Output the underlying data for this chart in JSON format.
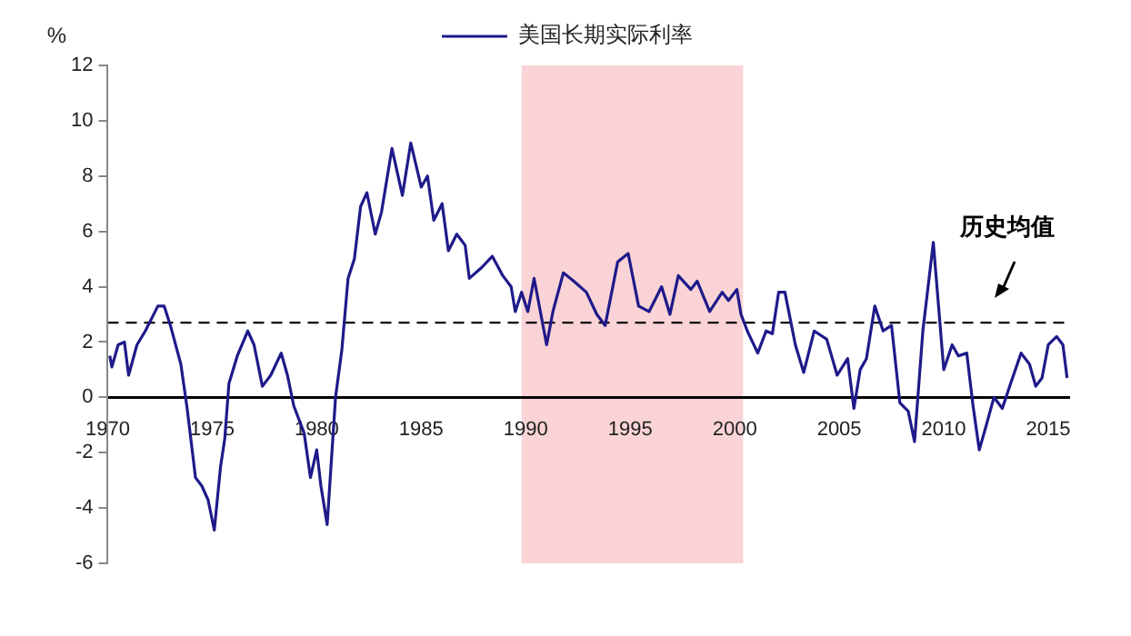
{
  "chart_data": {
    "type": "line",
    "ylabel": "%",
    "legend": "top",
    "series": [
      {
        "name": "美国长期实际利率",
        "color": "#1f1a8a",
        "x": [
          1970.1,
          1970.2,
          1970.5,
          1970.8,
          1971.0,
          1971.4,
          1971.8,
          1972.4,
          1972.7,
          1973.0,
          1973.5,
          1973.8,
          1974.2,
          1974.5,
          1974.8,
          1975.1,
          1975.4,
          1975.6,
          1975.8,
          1976.2,
          1976.7,
          1977.0,
          1977.4,
          1977.8,
          1978.3,
          1978.6,
          1978.9,
          1979.4,
          1979.7,
          1980.0,
          1980.2,
          1980.5,
          1980.9,
          1981.2,
          1981.5,
          1981.8,
          1982.1,
          1982.4,
          1982.8,
          1983.1,
          1983.6,
          1984.1,
          1984.5,
          1985.0,
          1985.3,
          1985.6,
          1986.0,
          1986.3,
          1986.7,
          1987.1,
          1987.3,
          1987.9,
          1988.4,
          1988.9,
          1989.3,
          1989.5,
          1989.8,
          1990.1,
          1990.4,
          1990.7,
          1991.0,
          1991.3,
          1991.8,
          1992.3,
          1992.9,
          1993.4,
          1993.8,
          1994.4,
          1994.9,
          1995.4,
          1995.9,
          1996.5,
          1996.9,
          1997.3,
          1997.9,
          1998.2,
          1998.8,
          1999.4,
          1999.7,
          2000.1,
          2000.3,
          2000.6,
          2001.1,
          2001.5,
          2001.8,
          2002.1,
          2002.4,
          2002.9,
          2003.3,
          2003.8,
          2004.4,
          2004.9,
          2005.4,
          2005.7,
          2006.0,
          2006.3,
          2006.7,
          2007.1,
          2007.5,
          2007.9,
          2008.3,
          2008.6,
          2009.0,
          2009.5,
          2010.0,
          2010.4,
          2010.7,
          2011.1,
          2011.4,
          2011.7,
          2012.0,
          2012.4,
          2012.8,
          2013.2,
          2013.7,
          2014.1,
          2014.4,
          2014.7,
          2015.0,
          2015.4,
          2015.7,
          2015.9
        ],
        "values": [
          1.5,
          1.1,
          1.9,
          2.0,
          0.8,
          1.9,
          2.4,
          3.3,
          3.3,
          2.6,
          1.2,
          -0.4,
          -2.9,
          -3.2,
          -3.7,
          -4.8,
          -2.5,
          -1.5,
          0.5,
          1.5,
          2.4,
          1.9,
          0.4,
          0.8,
          1.6,
          0.8,
          -0.3,
          -1.3,
          -2.9,
          -1.9,
          -3.2,
          -4.6,
          0.0,
          1.7,
          4.3,
          5.0,
          6.9,
          7.4,
          5.9,
          6.7,
          9.0,
          7.3,
          9.2,
          7.6,
          8.0,
          6.4,
          7.0,
          5.3,
          5.9,
          5.5,
          4.3,
          4.7,
          5.1,
          4.4,
          4.0,
          3.1,
          3.8,
          3.1,
          4.3,
          3.1,
          1.9,
          3.1,
          4.5,
          4.2,
          3.8,
          3.0,
          2.6,
          4.9,
          5.2,
          3.3,
          3.1,
          4.0,
          3.0,
          4.4,
          3.9,
          4.2,
          3.1,
          3.8,
          3.5,
          3.9,
          3.0,
          2.4,
          1.6,
          2.4,
          2.3,
          3.8,
          3.8,
          1.9,
          0.9,
          2.4,
          2.1,
          0.8,
          1.4,
          -0.4,
          1.0,
          1.4,
          3.3,
          2.4,
          2.6,
          -0.2,
          -0.5,
          -1.6,
          2.4,
          5.6,
          1.0,
          1.9,
          1.5,
          1.6,
          -0.3,
          -1.9,
          -1.1,
          0.0,
          -0.4,
          0.5,
          1.6,
          1.2,
          0.4,
          0.7,
          1.9,
          2.2,
          1.9,
          0.7
        ]
      }
    ],
    "xlim": [
      1970,
      2016
    ],
    "xticks": [
      1970,
      1975,
      1980,
      1985,
      1990,
      1995,
      2000,
      2005,
      2010,
      2015
    ],
    "ylim": [
      -6,
      12
    ],
    "yticks": [
      -6,
      -4,
      -2,
      0,
      2,
      4,
      6,
      8,
      10,
      12
    ],
    "grid": false,
    "marker": "none",
    "line_style": "solid",
    "ref_lines": [
      {
        "axis": "y",
        "value": 2.7,
        "label": "历史均值",
        "color": "#000000",
        "line_style": "dashed"
      }
    ],
    "bands": [
      {
        "axis": "x",
        "from": 1989.8,
        "to": 2000.4,
        "color": "#f9d3d6"
      }
    ]
  }
}
